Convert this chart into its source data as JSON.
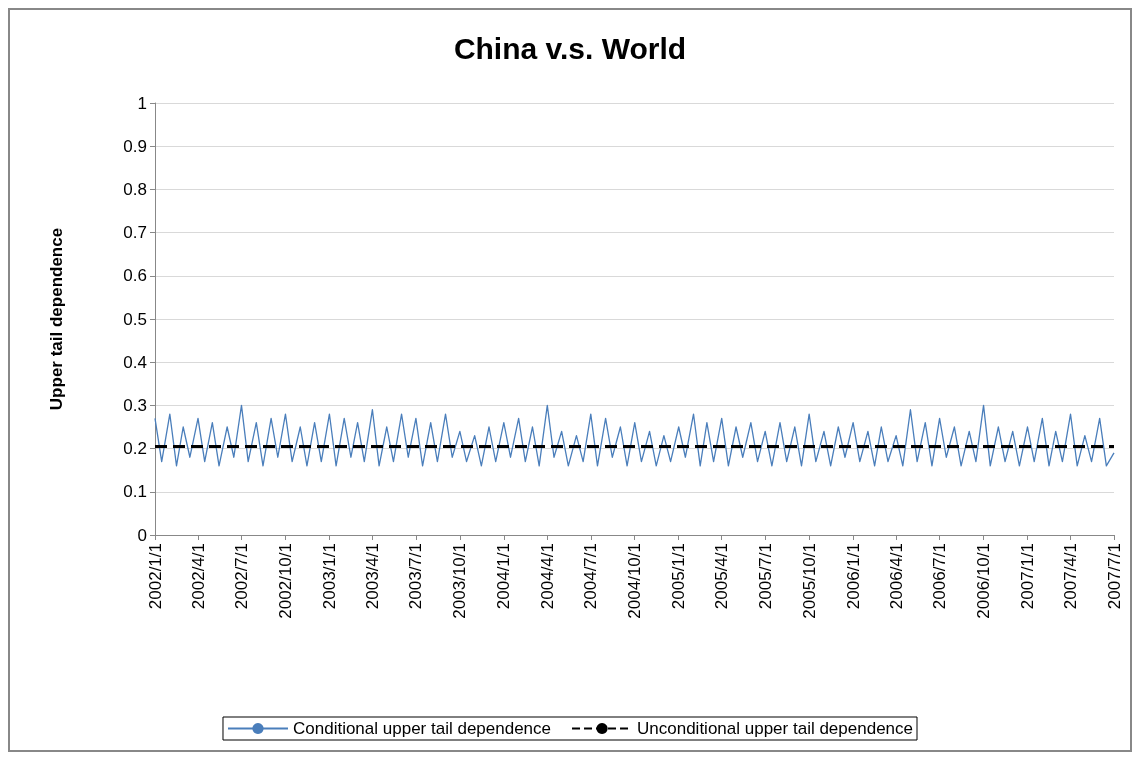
{
  "chart_data": {
    "type": "line",
    "title": "China v.s. World",
    "ylabel": "Upper tail dependence",
    "xlim": [
      "2002-01-01",
      "2007-07-01"
    ],
    "xticks": [
      {
        "value": "2002-01-01",
        "label": "2002/1/1"
      },
      {
        "value": "2002-04-01",
        "label": "2002/4/1"
      },
      {
        "value": "2002-07-01",
        "label": "2002/7/1"
      },
      {
        "value": "2002-10-01",
        "label": "2002/10/1"
      },
      {
        "value": "2003-01-01",
        "label": "2003/1/1"
      },
      {
        "value": "2003-04-01",
        "label": "2003/4/1"
      },
      {
        "value": "2003-07-01",
        "label": "2003/7/1"
      },
      {
        "value": "2003-10-01",
        "label": "2003/10/1"
      },
      {
        "value": "2004-01-01",
        "label": "2004/1/1"
      },
      {
        "value": "2004-04-01",
        "label": "2004/4/1"
      },
      {
        "value": "2004-07-01",
        "label": "2004/7/1"
      },
      {
        "value": "2004-10-01",
        "label": "2004/10/1"
      },
      {
        "value": "2005-01-01",
        "label": "2005/1/1"
      },
      {
        "value": "2005-04-01",
        "label": "2005/4/1"
      },
      {
        "value": "2005-07-01",
        "label": "2005/7/1"
      },
      {
        "value": "2005-10-01",
        "label": "2005/10/1"
      },
      {
        "value": "2006-01-01",
        "label": "2006/1/1"
      },
      {
        "value": "2006-04-01",
        "label": "2006/4/1"
      },
      {
        "value": "2006-07-01",
        "label": "2006/7/1"
      },
      {
        "value": "2006-10-01",
        "label": "2006/10/1"
      },
      {
        "value": "2007-01-01",
        "label": "2007/1/1"
      },
      {
        "value": "2007-04-01",
        "label": "2007/4/1"
      },
      {
        "value": "2007-07-01",
        "label": "2007/7/1"
      }
    ],
    "ylim": [
      0,
      1
    ],
    "yticks": [
      0,
      0.1,
      0.2,
      0.3,
      0.4,
      0.5,
      0.6,
      0.7,
      0.8,
      0.9,
      1
    ],
    "grid": "y",
    "legend": "bottom",
    "marker": "none",
    "series": [
      {
        "name": "Conditional upper tail dependence",
        "color": "#4a7ebb",
        "line_style": "solid",
        "x": [
          "2002-01-01",
          "2002-01-15",
          "2002-02-01",
          "2002-02-15",
          "2002-03-01",
          "2002-03-15",
          "2002-04-01",
          "2002-04-15",
          "2002-05-01",
          "2002-05-15",
          "2002-06-01",
          "2002-06-15",
          "2002-07-01",
          "2002-07-15",
          "2002-08-01",
          "2002-08-15",
          "2002-09-01",
          "2002-09-15",
          "2002-10-01",
          "2002-10-15",
          "2002-11-01",
          "2002-11-15",
          "2002-12-01",
          "2002-12-15",
          "2003-01-01",
          "2003-01-15",
          "2003-02-01",
          "2003-02-15",
          "2003-03-01",
          "2003-03-15",
          "2003-04-01",
          "2003-04-15",
          "2003-05-01",
          "2003-05-15",
          "2003-06-01",
          "2003-06-15",
          "2003-07-01",
          "2003-07-15",
          "2003-08-01",
          "2003-08-15",
          "2003-09-01",
          "2003-09-15",
          "2003-10-01",
          "2003-10-15",
          "2003-11-01",
          "2003-11-15",
          "2003-12-01",
          "2003-12-15",
          "2004-01-01",
          "2004-01-15",
          "2004-02-01",
          "2004-02-15",
          "2004-03-01",
          "2004-03-15",
          "2004-04-01",
          "2004-04-15",
          "2004-05-01",
          "2004-05-15",
          "2004-06-01",
          "2004-06-15",
          "2004-07-01",
          "2004-07-15",
          "2004-08-01",
          "2004-08-15",
          "2004-09-01",
          "2004-09-15",
          "2004-10-01",
          "2004-10-15",
          "2004-11-01",
          "2004-11-15",
          "2004-12-01",
          "2004-12-15",
          "2005-01-01",
          "2005-01-15",
          "2005-02-01",
          "2005-02-15",
          "2005-03-01",
          "2005-03-15",
          "2005-04-01",
          "2005-04-15",
          "2005-05-01",
          "2005-05-15",
          "2005-06-01",
          "2005-06-15",
          "2005-07-01",
          "2005-07-15",
          "2005-08-01",
          "2005-08-15",
          "2005-09-01",
          "2005-09-15",
          "2005-10-01",
          "2005-10-15",
          "2005-11-01",
          "2005-11-15",
          "2005-12-01",
          "2005-12-15",
          "2006-01-01",
          "2006-01-15",
          "2006-02-01",
          "2006-02-15",
          "2006-03-01",
          "2006-03-15",
          "2006-04-01",
          "2006-04-15",
          "2006-05-01",
          "2006-05-15",
          "2006-06-01",
          "2006-06-15",
          "2006-07-01",
          "2006-07-15",
          "2006-08-01",
          "2006-08-15",
          "2006-09-01",
          "2006-09-15",
          "2006-10-01",
          "2006-10-15",
          "2006-11-01",
          "2006-11-15",
          "2006-12-01",
          "2006-12-15",
          "2007-01-01",
          "2007-01-15",
          "2007-02-01",
          "2007-02-15",
          "2007-03-01",
          "2007-03-15",
          "2007-04-01",
          "2007-04-15",
          "2007-05-01",
          "2007-05-15",
          "2007-06-01",
          "2007-06-15",
          "2007-07-01"
        ],
        "values": [
          0.27,
          0.17,
          0.28,
          0.16,
          0.25,
          0.18,
          0.27,
          0.17,
          0.26,
          0.16,
          0.25,
          0.18,
          0.3,
          0.17,
          0.26,
          0.16,
          0.27,
          0.18,
          0.28,
          0.17,
          0.25,
          0.16,
          0.26,
          0.17,
          0.28,
          0.16,
          0.27,
          0.18,
          0.26,
          0.17,
          0.29,
          0.16,
          0.25,
          0.17,
          0.28,
          0.18,
          0.27,
          0.16,
          0.26,
          0.17,
          0.28,
          0.18,
          0.24,
          0.17,
          0.23,
          0.16,
          0.25,
          0.17,
          0.26,
          0.18,
          0.27,
          0.17,
          0.25,
          0.16,
          0.3,
          0.18,
          0.24,
          0.16,
          0.23,
          0.17,
          0.28,
          0.16,
          0.27,
          0.18,
          0.25,
          0.16,
          0.26,
          0.17,
          0.24,
          0.16,
          0.23,
          0.17,
          0.25,
          0.18,
          0.28,
          0.16,
          0.26,
          0.17,
          0.27,
          0.16,
          0.25,
          0.18,
          0.26,
          0.17,
          0.24,
          0.16,
          0.26,
          0.17,
          0.25,
          0.16,
          0.28,
          0.17,
          0.24,
          0.16,
          0.25,
          0.18,
          0.26,
          0.17,
          0.24,
          0.16,
          0.25,
          0.17,
          0.23,
          0.16,
          0.29,
          0.17,
          0.26,
          0.16,
          0.27,
          0.18,
          0.25,
          0.16,
          0.24,
          0.17,
          0.3,
          0.16,
          0.25,
          0.17,
          0.24,
          0.16,
          0.25,
          0.17,
          0.27,
          0.16,
          0.24,
          0.17,
          0.28,
          0.16,
          0.23,
          0.17,
          0.27,
          0.16,
          0.19
        ]
      },
      {
        "name": "Unconditional upper tail dependence",
        "color": "#000000",
        "line_style": "dashed",
        "x": [
          "2002-01-01",
          "2007-07-01"
        ],
        "values": [
          0.205,
          0.205
        ]
      }
    ]
  }
}
